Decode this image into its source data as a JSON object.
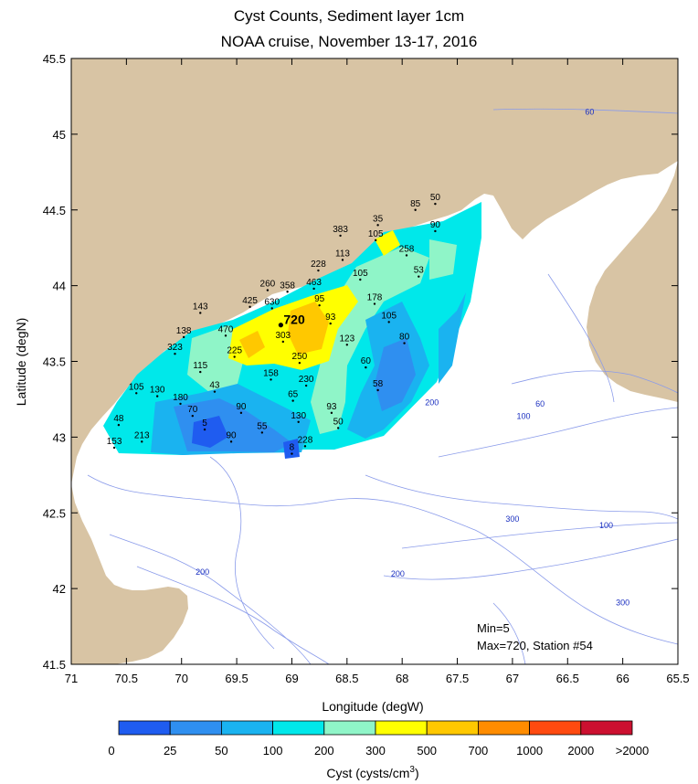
{
  "title": "Cyst Counts, Sediment layer 1cm",
  "subtitle": "NOAA cruise, November 13-17, 2016",
  "axes": {
    "xlabel": "Longitude (degW)",
    "ylabel": "Latitude (degN)",
    "x_ticks": [
      "71",
      "70.5",
      "70",
      "69.5",
      "69",
      "68.5",
      "68",
      "67.5",
      "67",
      "66.5",
      "66",
      "65.5"
    ],
    "y_ticks": [
      "45.5",
      "45",
      "44.5",
      "44",
      "43.5",
      "43",
      "42.5",
      "42",
      "41.5"
    ],
    "xlim": [
      71,
      65.5
    ],
    "ylim": [
      41.5,
      45.5
    ]
  },
  "colorbar": {
    "label": "Cyst (cysts/cm",
    "label_sup": "3",
    "label_end": ")",
    "tick_labels": [
      "0",
      "25",
      "50",
      "100",
      "200",
      "300",
      "500",
      "700",
      "1000",
      "2000",
      ">2000"
    ],
    "colors": [
      "#1f5cf0",
      "#2f8ff0",
      "#1ab3f0",
      "#00e8ea",
      "#8ff5c8",
      "#ffff00",
      "#ffc800",
      "#ff8c00",
      "#ff4a10",
      "#cc1030"
    ]
  },
  "stats": {
    "min": "Min=5",
    "max": "Max=720, Station #54"
  },
  "isobaths": [
    {
      "label": "60",
      "lon": 66.3,
      "lat": 45.13
    },
    {
      "label": "60",
      "lon": 66.75,
      "lat": 43.2
    },
    {
      "label": "100",
      "lon": 66.9,
      "lat": 43.12
    },
    {
      "label": "200",
      "lon": 67.73,
      "lat": 43.21
    },
    {
      "label": "300",
      "lon": 67.0,
      "lat": 42.44
    },
    {
      "label": "100",
      "lon": 66.15,
      "lat": 42.4
    },
    {
      "label": "200",
      "lon": 69.81,
      "lat": 42.09
    },
    {
      "label": "200",
      "lon": 68.04,
      "lat": 42.08
    },
    {
      "label": "300",
      "lon": 66.0,
      "lat": 41.89
    }
  ],
  "stations": [
    {
      "v": "50",
      "lon": 67.7,
      "lat": 44.54
    },
    {
      "v": "85",
      "lon": 67.88,
      "lat": 44.5
    },
    {
      "v": "35",
      "lon": 68.22,
      "lat": 44.4
    },
    {
      "v": "90",
      "lon": 67.7,
      "lat": 44.36
    },
    {
      "v": "383",
      "lon": 68.56,
      "lat": 44.33
    },
    {
      "v": "105",
      "lon": 68.24,
      "lat": 44.3
    },
    {
      "v": "258",
      "lon": 67.96,
      "lat": 44.2
    },
    {
      "v": "113",
      "lon": 68.54,
      "lat": 44.17
    },
    {
      "v": "228",
      "lon": 68.76,
      "lat": 44.1
    },
    {
      "v": "105",
      "lon": 68.38,
      "lat": 44.04
    },
    {
      "v": "53",
      "lon": 67.85,
      "lat": 44.06
    },
    {
      "v": "463",
      "lon": 68.8,
      "lat": 43.98
    },
    {
      "v": "260",
      "lon": 69.22,
      "lat": 43.97
    },
    {
      "v": "358",
      "lon": 69.04,
      "lat": 43.96
    },
    {
      "v": "95",
      "lon": 68.75,
      "lat": 43.87
    },
    {
      "v": "178",
      "lon": 68.25,
      "lat": 43.88
    },
    {
      "v": "425",
      "lon": 69.38,
      "lat": 43.86
    },
    {
      "v": "630",
      "lon": 69.18,
      "lat": 43.85
    },
    {
      "v": "143",
      "lon": 69.83,
      "lat": 43.82
    },
    {
      "v": "93",
      "lon": 68.65,
      "lat": 43.75
    },
    {
      "v": "720",
      "lon": 69.1,
      "lat": 43.74
    },
    {
      "v": "105",
      "lon": 68.12,
      "lat": 43.76
    },
    {
      "v": "470",
      "lon": 69.6,
      "lat": 43.67
    },
    {
      "v": "138",
      "lon": 69.98,
      "lat": 43.66
    },
    {
      "v": "303",
      "lon": 69.08,
      "lat": 43.63
    },
    {
      "v": "123",
      "lon": 68.5,
      "lat": 43.61
    },
    {
      "v": "80",
      "lon": 67.98,
      "lat": 43.62
    },
    {
      "v": "323",
      "lon": 70.06,
      "lat": 43.55
    },
    {
      "v": "225",
      "lon": 69.52,
      "lat": 43.53
    },
    {
      "v": "250",
      "lon": 68.93,
      "lat": 43.49
    },
    {
      "v": "60",
      "lon": 68.33,
      "lat": 43.46
    },
    {
      "v": "115",
      "lon": 69.83,
      "lat": 43.43
    },
    {
      "v": "158",
      "lon": 69.19,
      "lat": 43.38
    },
    {
      "v": "230",
      "lon": 68.87,
      "lat": 43.34
    },
    {
      "v": "43",
      "lon": 69.7,
      "lat": 43.3
    },
    {
      "v": "58",
      "lon": 68.22,
      "lat": 43.31
    },
    {
      "v": "105",
      "lon": 70.41,
      "lat": 43.29
    },
    {
      "v": "130",
      "lon": 70.22,
      "lat": 43.27
    },
    {
      "v": "180",
      "lon": 70.01,
      "lat": 43.22
    },
    {
      "v": "65",
      "lon": 68.99,
      "lat": 43.24
    },
    {
      "v": "90",
      "lon": 69.46,
      "lat": 43.16
    },
    {
      "v": "70",
      "lon": 69.9,
      "lat": 43.14
    },
    {
      "v": "93",
      "lon": 68.64,
      "lat": 43.16
    },
    {
      "v": "130",
      "lon": 68.94,
      "lat": 43.1
    },
    {
      "v": "48",
      "lon": 70.57,
      "lat": 43.08
    },
    {
      "v": "50",
      "lon": 68.58,
      "lat": 43.06
    },
    {
      "v": "5",
      "lon": 69.79,
      "lat": 43.05
    },
    {
      "v": "55",
      "lon": 69.27,
      "lat": 43.03
    },
    {
      "v": "213",
      "lon": 70.36,
      "lat": 42.97
    },
    {
      "v": "90",
      "lon": 69.55,
      "lat": 42.97
    },
    {
      "v": "228",
      "lon": 68.88,
      "lat": 42.94
    },
    {
      "v": "153",
      "lon": 70.61,
      "lat": 42.93
    },
    {
      "v": "8",
      "lon": 69.0,
      "lat": 42.89
    }
  ]
}
